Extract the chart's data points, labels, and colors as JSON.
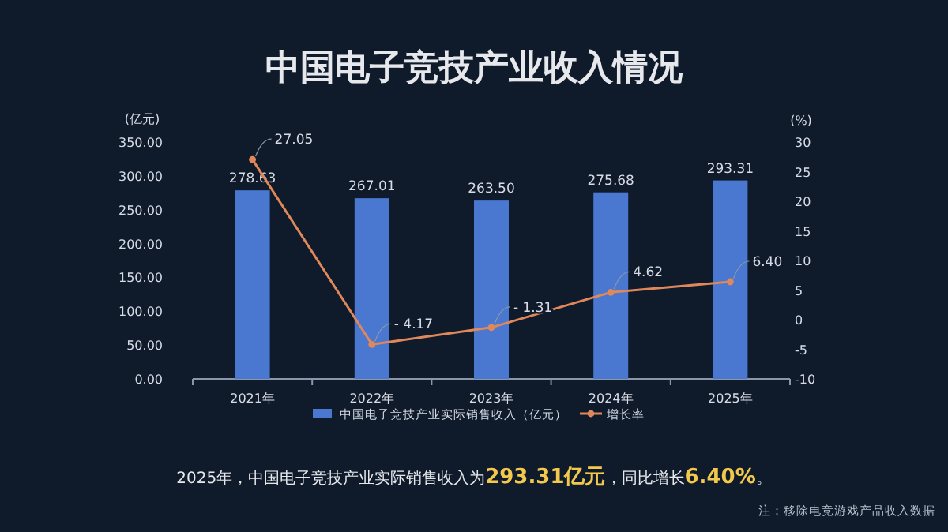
{
  "chart_data": {
    "type": "bar",
    "title": "中国电子竞技产业收入情况",
    "categories": [
      "2021年",
      "2022年",
      "2023年",
      "2024年",
      "2025年"
    ],
    "series": [
      {
        "name": "中国电子竞技产业实际销售收入（亿元）",
        "color": "#4a78d0",
        "values": [
          278.63,
          267.01,
          263.5,
          275.68,
          293.31
        ],
        "value_labels": [
          "278.63",
          "267.01",
          "263.50",
          "275.68",
          "293.31"
        ]
      },
      {
        "name": "增长率",
        "type": "line",
        "axis": "y2",
        "color": "#e0885a",
        "marker": "circle",
        "values": [
          27.05,
          -4.17,
          -1.31,
          4.62,
          6.4
        ],
        "value_labels": [
          "27.05",
          "- 4.17",
          "- 1.31",
          "4.62",
          "6.40"
        ]
      }
    ],
    "ylabel": "(亿元)",
    "y2label": "(%)",
    "ylim": [
      0,
      350
    ],
    "yticks": [
      {
        "value": 0,
        "label": "0.00"
      },
      {
        "value": 50,
        "label": "50.00"
      },
      {
        "value": 100,
        "label": "100.00"
      },
      {
        "value": 150,
        "label": "150.00"
      },
      {
        "value": 200,
        "label": "200.00"
      },
      {
        "value": 250,
        "label": "250.00"
      },
      {
        "value": 300,
        "label": "300.00"
      },
      {
        "value": 350,
        "label": "350.00"
      }
    ],
    "y2lim": [
      -10,
      30
    ],
    "y2ticks": [
      -10,
      -5,
      0,
      5,
      10,
      15,
      20,
      25,
      30
    ],
    "legend": "bottom",
    "annotations": [
      "2025年，中国电子竞技产业实际销售收入为**293.31亿元**，同比增长**6.40%**。",
      "注：移除电竞游戏产品收入数据"
    ]
  }
}
